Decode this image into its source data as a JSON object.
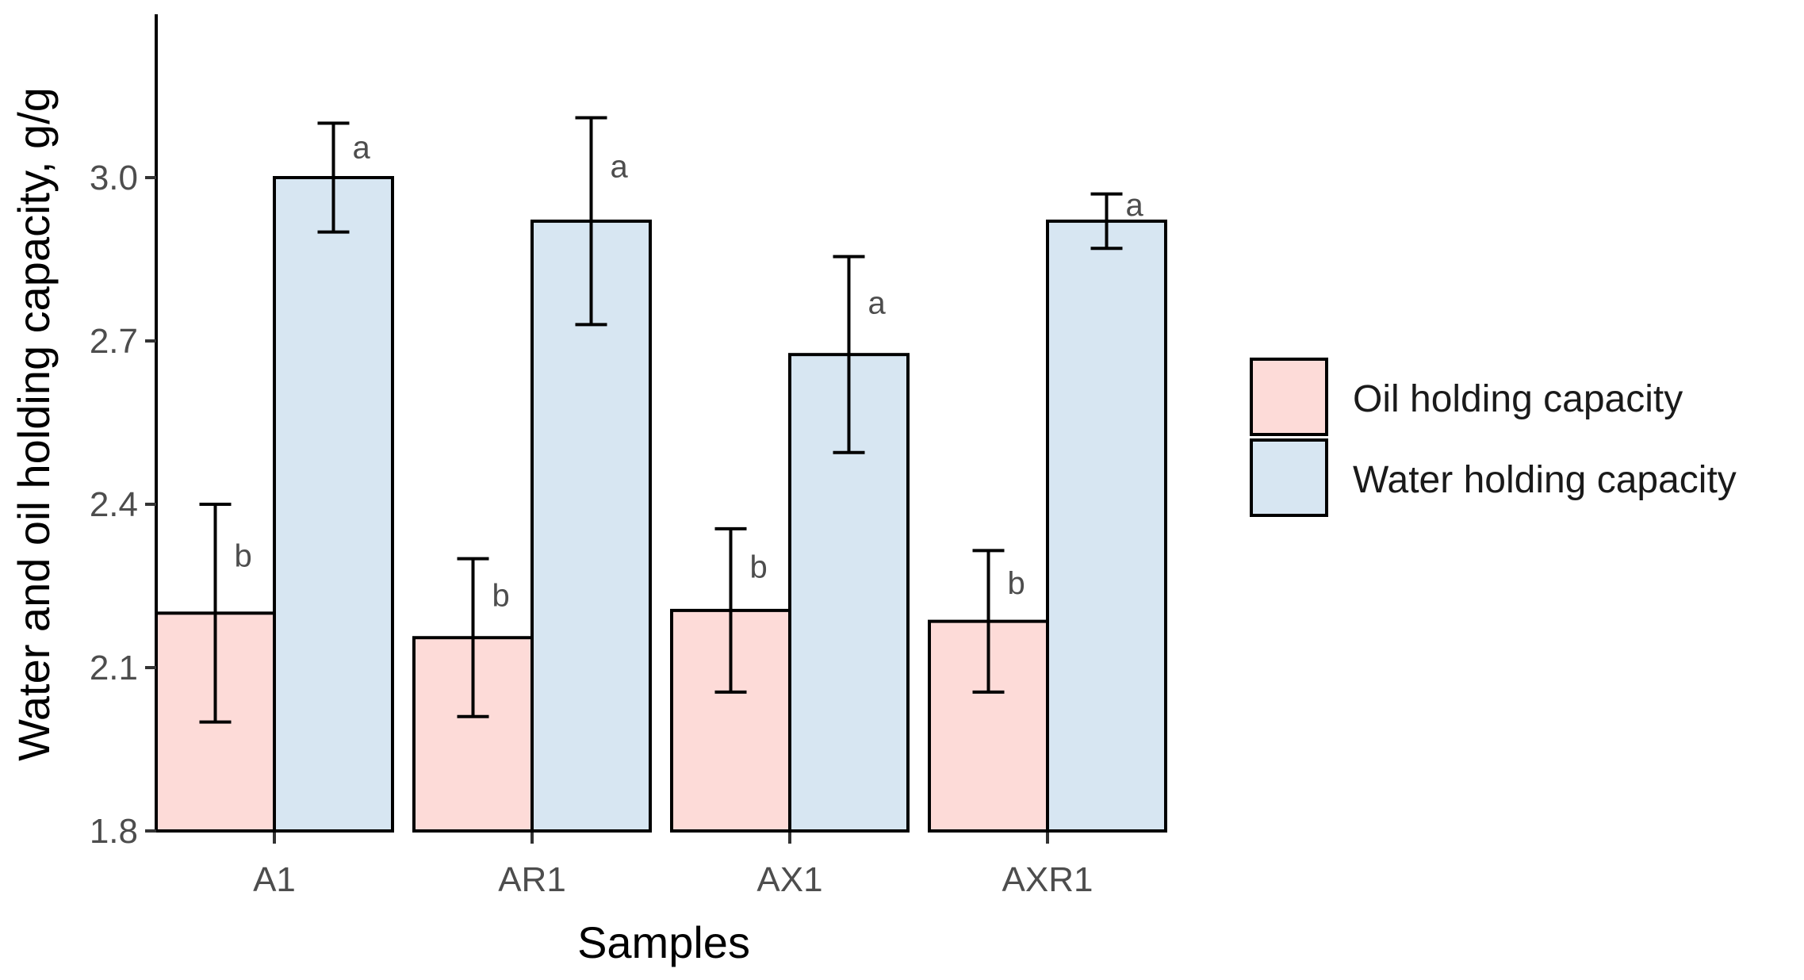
{
  "chart_data": {
    "type": "bar",
    "title": "",
    "xlabel": "Samples",
    "ylabel": "Water and oil holding capacity, g/g",
    "ylim": [
      1.8,
      3.3
    ],
    "yticks": [
      "1.8",
      "2.1",
      "2.4",
      "2.7",
      "3.0"
    ],
    "categories": [
      "A1",
      "AR1",
      "AX1",
      "AXR1"
    ],
    "series": [
      {
        "name": "Oil holding capacity",
        "color": "#fddbd8",
        "values": [
          2.2,
          2.155,
          2.205,
          2.185
        ],
        "errors": [
          0.2,
          0.145,
          0.15,
          0.13
        ],
        "labels": [
          "b",
          "b",
          "b",
          "b"
        ]
      },
      {
        "name": "Water holding capacity",
        "color": "#d7e6f2",
        "values": [
          3.0,
          2.92,
          2.675,
          2.92
        ],
        "errors": [
          0.1,
          0.19,
          0.18,
          0.05
        ],
        "labels": [
          "a",
          "a",
          "a",
          "a"
        ]
      }
    ],
    "legend": {
      "position": "right",
      "entries": [
        "Oil holding capacity",
        "Water holding capacity"
      ]
    },
    "grid": false
  }
}
